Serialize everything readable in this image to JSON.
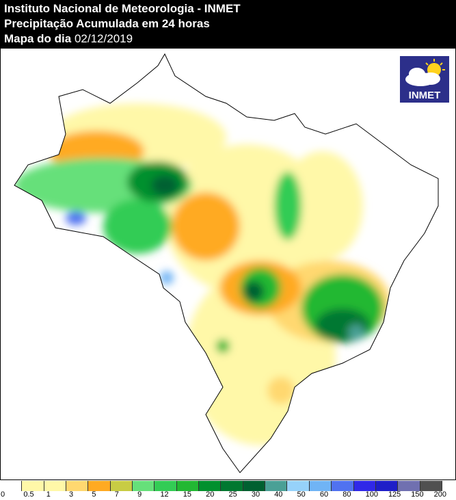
{
  "header": {
    "line1": "Instituto Nacional de Meteorologia - INMET",
    "line2": "Precipitação Acumulada em 24 horas",
    "line3_label": "Mapa do dia",
    "line3_date": "02/12/2019"
  },
  "logo": {
    "text": "INMET",
    "icon": "cloud-sun-icon"
  },
  "legend": {
    "colors": [
      "#ffffff",
      "#fff8a8",
      "#fff8a8",
      "#ffd870",
      "#ffaa22",
      "#c8cc44",
      "#66e07a",
      "#33cc55",
      "#22b833",
      "#00902e",
      "#007830",
      "#006030",
      "#4aa096",
      "#96d2fa",
      "#70b4f5",
      "#5072f0",
      "#3028e8",
      "#1e1ec8",
      "#7070b0",
      "#505050"
    ],
    "labels": [
      "0",
      "0.5",
      "1",
      "3",
      "5",
      "7",
      "9",
      "12",
      "15",
      "20",
      "25",
      "30",
      "40",
      "50",
      "60",
      "80",
      "100",
      "125",
      "150",
      "200"
    ]
  }
}
